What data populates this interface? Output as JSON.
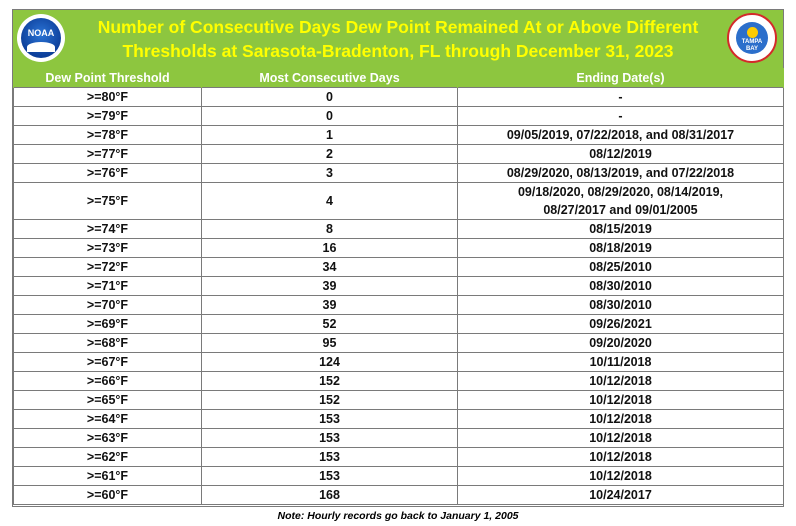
{
  "header": {
    "title_line1": "Number of Consecutive Days Dew Point Remained At or Above Different",
    "title_line2": "Thresholds at Sarasota-Bradenton, FL through December 31, 2023",
    "logo_left_text": "NOAA",
    "logo_right_text": "TAMPA BAY"
  },
  "columns": [
    "Dew Point Threshold",
    "Most Consecutive Days",
    "Ending Date(s)"
  ],
  "rows": [
    {
      "threshold": ">=80°F",
      "days": "0",
      "dates": "-"
    },
    {
      "threshold": ">=79°F",
      "days": "0",
      "dates": "-"
    },
    {
      "threshold": ">=78°F",
      "days": "1",
      "dates": "09/05/2019, 07/22/2018, and 08/31/2017"
    },
    {
      "threshold": ">=77°F",
      "days": "2",
      "dates": "08/12/2019"
    },
    {
      "threshold": ">=76°F",
      "days": "3",
      "dates": "08/29/2020, 08/13/2019, and 07/22/2018"
    },
    {
      "threshold": ">=75°F",
      "days": "4",
      "dates": "09/18/2020, 08/29/2020, 08/14/2019,",
      "dates2": "08/27/2017 and 09/01/2005"
    },
    {
      "threshold": ">=74°F",
      "days": "8",
      "dates": "08/15/2019"
    },
    {
      "threshold": ">=73°F",
      "days": "16",
      "dates": "08/18/2019"
    },
    {
      "threshold": ">=72°F",
      "days": "34",
      "dates": "08/25/2010"
    },
    {
      "threshold": ">=71°F",
      "days": "39",
      "dates": "08/30/2010"
    },
    {
      "threshold": ">=70°F",
      "days": "39",
      "dates": "08/30/2010"
    },
    {
      "threshold": ">=69°F",
      "days": "52",
      "dates": "09/26/2021"
    },
    {
      "threshold": ">=68°F",
      "days": "95",
      "dates": "09/20/2020"
    },
    {
      "threshold": ">=67°F",
      "days": "124",
      "dates": "10/11/2018"
    },
    {
      "threshold": ">=66°F",
      "days": "152",
      "dates": "10/12/2018"
    },
    {
      "threshold": ">=65°F",
      "days": "152",
      "dates": "10/12/2018"
    },
    {
      "threshold": ">=64°F",
      "days": "153",
      "dates": "10/12/2018"
    },
    {
      "threshold": ">=63°F",
      "days": "153",
      "dates": "10/12/2018"
    },
    {
      "threshold": ">=62°F",
      "days": "153",
      "dates": "10/12/2018"
    },
    {
      "threshold": ">=61°F",
      "days": "153",
      "dates": "10/12/2018"
    },
    {
      "threshold": ">=60°F",
      "days": "168",
      "dates": "10/24/2017"
    }
  ],
  "note": "Note: Hourly records go back to January 1, 2005",
  "colors": {
    "header_green": "#8dc63f",
    "title_yellow": "#ffff00"
  }
}
